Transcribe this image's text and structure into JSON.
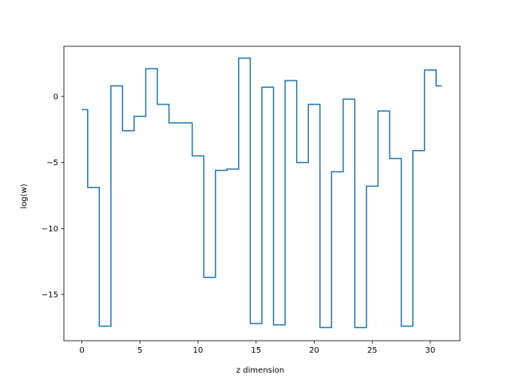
{
  "chart_data": {
    "type": "line",
    "drawstyle": "steps-mid",
    "title": "",
    "xlabel": "z dimension",
    "ylabel": "log(w)",
    "xlim": [
      -1.55,
      32.55
    ],
    "ylim": [
      -18.5,
      3.8
    ],
    "xticks": [
      0,
      5,
      10,
      15,
      20,
      25,
      30
    ],
    "yticks": [
      0,
      -5,
      -10,
      -15
    ],
    "ytick_labels": [
      "0",
      "−5",
      "−10",
      "−15"
    ],
    "grid": false,
    "legend": null,
    "color": "#1f77b4",
    "series": [
      {
        "x": [
          0,
          1,
          2,
          3,
          4,
          5,
          6,
          7,
          8,
          9,
          10,
          11,
          12,
          13,
          14,
          15,
          16,
          17,
          18,
          19,
          20,
          21,
          22,
          23,
          24,
          25,
          26,
          27,
          28,
          29,
          30,
          31
        ],
        "values": [
          -1.0,
          -6.9,
          -17.4,
          0.8,
          -2.6,
          -1.5,
          2.1,
          -0.6,
          -2.0,
          -2.0,
          -4.5,
          -13.7,
          -5.6,
          -5.5,
          2.9,
          -17.2,
          0.7,
          -17.3,
          1.2,
          -5.0,
          -0.6,
          -17.5,
          -5.7,
          -0.2,
          -17.5,
          -6.8,
          -1.1,
          -4.7,
          -17.4,
          -4.1,
          2.0,
          0.8
        ]
      }
    ]
  }
}
